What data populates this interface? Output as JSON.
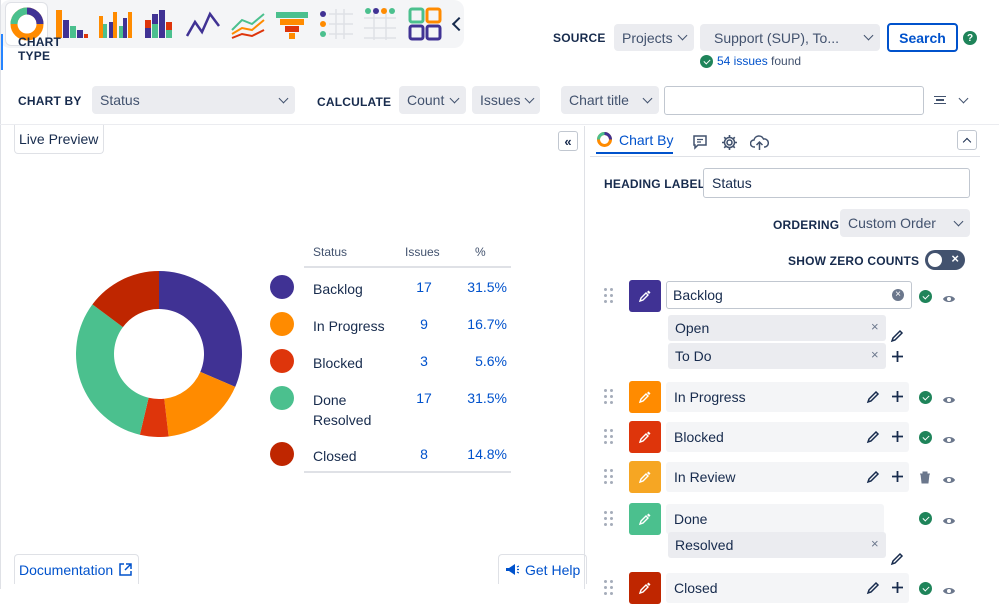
{
  "header": {
    "chart_type_label": "CHART\nTYPE",
    "source_label": "SOURCE",
    "source_select": "Projects",
    "source_value": "Support (SUP), To...",
    "search_button": "Search",
    "issues_found_count": "54 issues",
    "issues_found_suffix": " found",
    "chart_by_label": "CHART BY",
    "chart_by_value": "Status",
    "calculate_label": "CALCULATE",
    "calc_count": "Count",
    "calc_issues": "Issues",
    "chart_title_select": "Chart title",
    "chart_title_input": ""
  },
  "preview": {
    "tab": "Live Preview",
    "documentation": "Documentation",
    "get_help": "Get Help"
  },
  "chart_data": {
    "type": "pie",
    "donut": true,
    "columns": [
      "Status",
      "Issues",
      "%"
    ],
    "slices": [
      {
        "label": "Backlog",
        "value": 17,
        "pct": "31.5%",
        "color": "#403294"
      },
      {
        "label": "In Progress",
        "value": 9,
        "pct": "16.7%",
        "color": "#ff8b00"
      },
      {
        "label": "Blocked",
        "value": 3,
        "pct": "5.6%",
        "color": "#de350b"
      },
      {
        "label": "Done\nResolved",
        "value": 17,
        "pct": "31.5%",
        "color": "#4bc08e"
      },
      {
        "label": "Closed",
        "value": 8,
        "pct": "14.8%",
        "color": "#bf2600"
      }
    ]
  },
  "settings": {
    "tab_chart_by": "Chart By",
    "heading_label": "HEADING LABEL",
    "heading_value": "Status",
    "ordering_label": "ORDERING",
    "ordering_value": "Custom Order",
    "show_zero_label": "SHOW ZERO COUNTS",
    "statuses": [
      {
        "name": "Backlog",
        "color": "#403294",
        "subs": [
          "Open",
          "To Do"
        ]
      },
      {
        "name": "In Progress",
        "color": "#ff8b00"
      },
      {
        "name": "Blocked",
        "color": "#de350b"
      },
      {
        "name": "In Review",
        "color": "#f6a623"
      },
      {
        "name": "Done",
        "color": "#4bc08e",
        "subs": [
          "Resolved"
        ]
      },
      {
        "name": "Closed",
        "color": "#bf2600"
      }
    ]
  },
  "icons": [
    "donut-chart-icon",
    "bar-chart-icon",
    "grouped-bar-icon",
    "stacked-bar-icon",
    "line-chart-icon",
    "multi-line-icon",
    "funnel-icon",
    "dot-grid-icon",
    "table-dots-icon",
    "tiles-icon"
  ]
}
